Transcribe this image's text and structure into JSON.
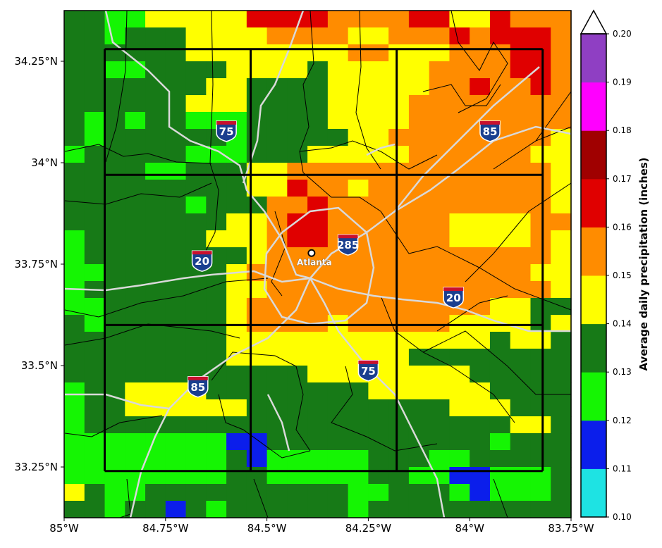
{
  "map": {
    "lon_range": [
      -85.0,
      -83.75
    ],
    "lat_range": [
      33.125,
      34.375
    ],
    "x_tick_labels": [
      "85°W",
      "84.75°W",
      "84.5°W",
      "84.25°W",
      "84°W",
      "83.75°W"
    ],
    "x_tick_values": [
      -85.0,
      -84.75,
      -84.5,
      -84.25,
      -84.0,
      -83.75
    ],
    "y_tick_labels": [
      "34.25°N",
      "34°N",
      "33.75°N",
      "33.5°N",
      "33.25°N"
    ],
    "y_tick_values": [
      34.25,
      34.0,
      33.75,
      33.5,
      33.25
    ],
    "city": {
      "name": "Atlanta",
      "lon": -84.39,
      "lat": 33.753
    },
    "highway_shields": [
      {
        "label": "75",
        "lon": -84.6,
        "lat": 34.08
      },
      {
        "label": "85",
        "lon": -83.95,
        "lat": 34.08
      },
      {
        "label": "20",
        "lon": -84.66,
        "lat": 33.76
      },
      {
        "label": "285",
        "lon": -84.3,
        "lat": 33.8
      },
      {
        "label": "20",
        "lon": -84.04,
        "lat": 33.67
      },
      {
        "label": "85",
        "lon": -84.67,
        "lat": 33.45
      },
      {
        "label": "75",
        "lon": -84.25,
        "lat": 33.49
      }
    ],
    "grid_box_lons": [
      -84.9,
      -84.54,
      -84.18,
      -83.82
    ],
    "grid_box_lats": [
      34.28,
      33.97,
      33.6,
      33.24
    ],
    "colors": {
      "cell_fill": [
        "#1ee3e3",
        "#0b1eeb",
        "#15f503",
        "#177a17",
        "#ffff00",
        "#ff8c00",
        "#e00000",
        "#a00000",
        "#ff00ff",
        "#8f3fc3"
      ],
      "road": "#cccccc",
      "county_line": "#000000",
      "box_line": "#000000"
    }
  },
  "colorbar": {
    "title": "Average daily precipitation (inches)",
    "labels": [
      "0.10",
      "0.11",
      "0.12",
      "0.13",
      "0.14",
      "0.15",
      "0.16",
      "0.17",
      "0.18",
      "0.19",
      "0.20"
    ],
    "values": [
      0.1,
      0.11,
      0.12,
      0.13,
      0.14,
      0.15,
      0.16,
      0.17,
      0.18,
      0.19,
      0.2
    ],
    "extend": "max"
  },
  "grid": {
    "rows": [
      "3322444446666555566446555",
      "3323334444555544555656665",
      "3333334444444455444555665",
      "3322333344443444445555665",
      "3333333443333444445565565",
      "3333334443333444455555555",
      "3232332223333444455555555",
      "3233333323333344555555554",
      "2333332223334444455555544",
      "3333223334455555555555554",
      "3333333334465545555555554",
      "3333332333556555555555554",
      "3333333344566555555444455",
      "2333333444566555555444454",
      "2333333334555555555555554",
      "2233333345555555555555544",
      "2333333344555555555555554",
      "2233333345555555555554433",
      "3233333345555455555444434",
      "3333333344444444444443443",
      "3333333344444444433333333",
      "3333333333334444444433333",
      "2334444333333334444443333",
      "2334444443333333333444333",
      "2333333333333333333333443",
      "2222222211333333333332333",
      "2222222231222223332233333",
      "2222222233222223322112223",
      "4322333333333322333212223",
      "3323313233333323333333333"
    ],
    "colorbar_extent": 2
  }
}
